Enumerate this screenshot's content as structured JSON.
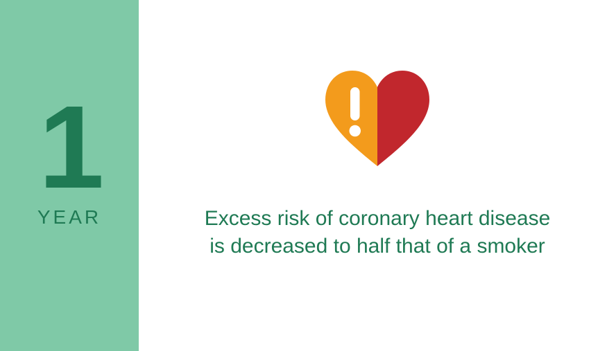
{
  "colors": {
    "sidebar_bg": "#7fc9a7",
    "content_bg": "#ffffff",
    "number_color": "#1f7a54",
    "unit_color": "#1f7a54",
    "description_color": "#1f7a54",
    "heart_left": "#f39b1c",
    "heart_right": "#c1272d",
    "exclaim": "#ffffff"
  },
  "typography": {
    "number_fontsize": 170,
    "unit_fontsize": 28,
    "description_fontsize": 30
  },
  "sidebar": {
    "number": "1",
    "unit": "YEAR"
  },
  "main": {
    "text": "Excess risk of coronary heart disease is decreased to half that of a smoker"
  },
  "icon": {
    "name": "heart-exclaim-icon",
    "width": 150,
    "height": 140
  }
}
